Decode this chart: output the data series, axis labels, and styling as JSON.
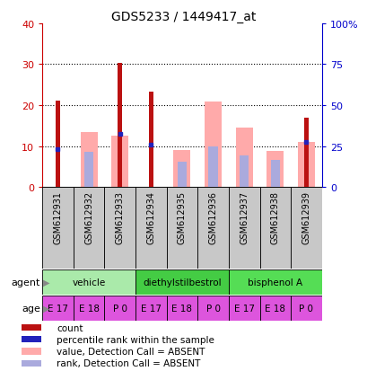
{
  "title": "GDS5233 / 1449417_at",
  "samples": [
    "GSM612931",
    "GSM612932",
    "GSM612933",
    "GSM612934",
    "GSM612935",
    "GSM612936",
    "GSM612937",
    "GSM612938",
    "GSM612939"
  ],
  "red_count": [
    21.0,
    0.0,
    30.3,
    23.2,
    0.0,
    0.0,
    0.0,
    0.0,
    17.0
  ],
  "pink_value_absent": [
    0.0,
    13.5,
    12.5,
    0.0,
    9.0,
    20.8,
    14.5,
    8.7,
    11.0
  ],
  "blue_rank_present": [
    9.2,
    0.0,
    13.0,
    10.3,
    0.0,
    0.0,
    0.0,
    0.0,
    11.0
  ],
  "lavender_rank_absent": [
    0.0,
    8.5,
    0.0,
    0.0,
    6.2,
    9.8,
    7.8,
    6.5,
    0.0
  ],
  "ylim_left": [
    0,
    40
  ],
  "ylim_right": [
    0,
    100
  ],
  "yticks_left": [
    0,
    10,
    20,
    30,
    40
  ],
  "yticks_left_labels": [
    "0",
    "10",
    "20",
    "30",
    "40"
  ],
  "yticks_right": [
    0,
    25,
    50,
    75,
    100
  ],
  "yticks_right_labels": [
    "0",
    "25",
    "50",
    "75",
    "100%"
  ],
  "agent_groups": [
    {
      "label": "vehicle",
      "start": 0,
      "end": 3,
      "color": "#aaeaaa"
    },
    {
      "label": "diethylstilbestrol",
      "start": 3,
      "end": 6,
      "color": "#44cc44"
    },
    {
      "label": "bisphenol A",
      "start": 6,
      "end": 9,
      "color": "#55dd55"
    }
  ],
  "age_labels": [
    "E 17",
    "E 18",
    "P 0",
    "E 17",
    "E 18",
    "P 0",
    "E 17",
    "E 18",
    "P 0"
  ],
  "age_color": "#dd55dd",
  "sample_bg": "#c8c8c8",
  "red_color": "#bb1111",
  "pink_color": "#ffaaaa",
  "blue_color": "#2222bb",
  "lavender_color": "#aaaadd",
  "left_axis_color": "#cc0000",
  "right_axis_color": "#0000cc",
  "legend_labels": [
    "count",
    "percentile rank within the sample",
    "value, Detection Call = ABSENT",
    "rank, Detection Call = ABSENT"
  ],
  "legend_colors": [
    "#bb1111",
    "#2222bb",
    "#ffaaaa",
    "#aaaadd"
  ]
}
